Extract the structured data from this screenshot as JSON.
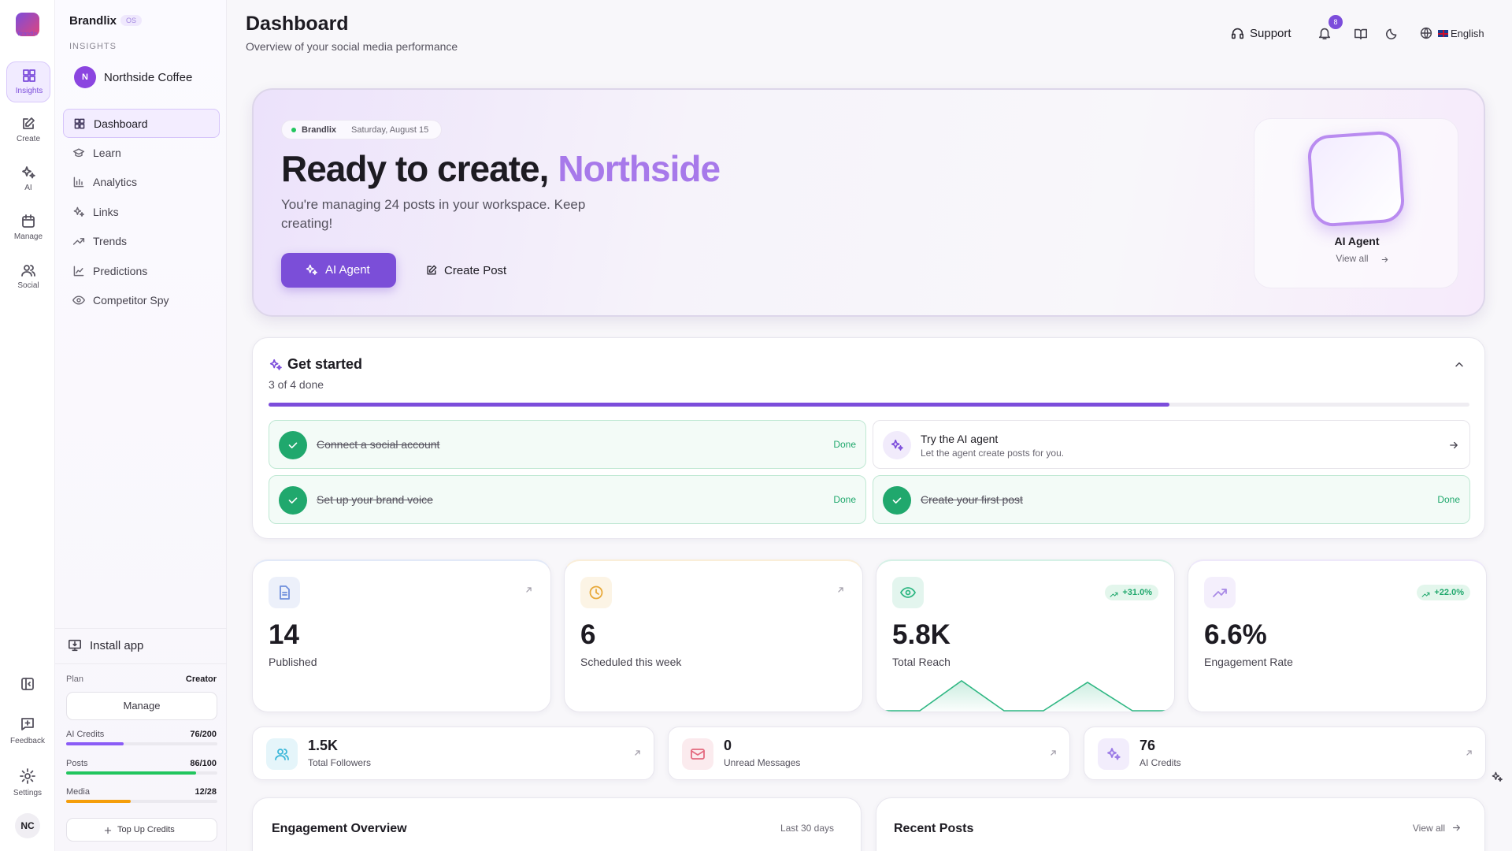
{
  "brand": {
    "name": "Brandlix",
    "badge": "OS",
    "logo_text": "Brandlix"
  },
  "rail": {
    "items": [
      "Insights",
      "Create",
      "AI",
      "Manage",
      "Social"
    ],
    "bottom": [
      "Feedback",
      "Settings"
    ],
    "avatar": "NC"
  },
  "sidebar": {
    "section": "INSIGHTS",
    "workspace_initial": "N",
    "workspace": "Northside Coffee",
    "nav": [
      "Dashboard",
      "Learn",
      "Analytics",
      "Links",
      "Trends",
      "Predictions",
      "Competitor Spy"
    ],
    "install": "Install app",
    "plan_label": "Plan",
    "plan": "Creator",
    "manage": "Manage",
    "usage": [
      {
        "name": "AI Credits",
        "label": "76/200",
        "used": 76,
        "total": 200,
        "color": "#8b5cf6"
      },
      {
        "name": "Posts",
        "label": "86/100",
        "used": 86,
        "total": 100,
        "color": "#22c55e"
      },
      {
        "name": "Media",
        "label": "12/28",
        "used": 12,
        "total": 28,
        "color": "#f59e0b"
      }
    ],
    "top_up": "Top Up Credits"
  },
  "header": {
    "title": "Dashboard",
    "subtitle": "Overview of your social media performance",
    "support": "Support",
    "notifications": "8",
    "language": "English"
  },
  "hero": {
    "brand": "Brandlix",
    "date": "Saturday, August 15",
    "heading": "Ready to create,",
    "highlight": "Northside",
    "text": "You're managing 24 posts in your workspace. Keep creating!",
    "primary": "AI Agent",
    "secondary": "Create Post",
    "agent_title": "AI Agent",
    "agent_link": "View all"
  },
  "get_started": {
    "title": "Get started",
    "progress_label": "3 of 4 done",
    "done": 3,
    "total": 4,
    "tasks": [
      {
        "title": "Connect a social account",
        "status": "Done"
      },
      {
        "title": "Try the AI agent",
        "subtitle": "Let the agent create posts for you."
      },
      {
        "title": "Set up your brand voice",
        "status": "Done"
      },
      {
        "title": "Create your first post",
        "status": "Done"
      }
    ]
  },
  "stats": [
    {
      "value": "14",
      "label": "Published",
      "color": "#6f8fdc"
    },
    {
      "value": "6",
      "label": "Scheduled this week",
      "color": "#e8a93a"
    },
    {
      "value": "5.8K",
      "label": "Total Reach",
      "change": "+31.0%",
      "color": "#2fb783"
    },
    {
      "value": "6.6%",
      "label": "Engagement Rate",
      "change": "+22.0%",
      "color": "#a98ae6"
    }
  ],
  "mini_stats": [
    {
      "value": "1.5K",
      "label": "Total Followers",
      "color": "#3bb7d9"
    },
    {
      "value": "0",
      "label": "Unread Messages",
      "color": "#e46a7f"
    },
    {
      "value": "76",
      "label": "AI Credits",
      "color": "#9b7be6"
    }
  ],
  "panels": [
    {
      "title": "Engagement Overview",
      "meta": "Last 30 days"
    },
    {
      "title": "Recent Posts",
      "meta": "View all"
    }
  ]
}
